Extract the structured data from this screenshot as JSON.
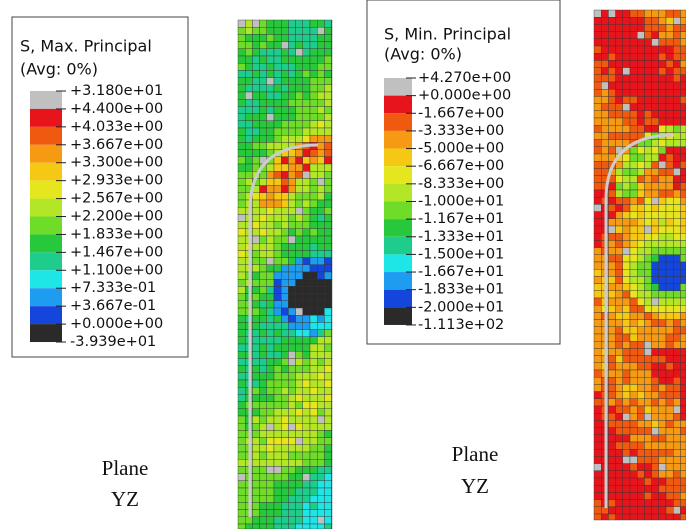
{
  "legends": [
    {
      "title": "S, Max. Principal",
      "subtitle": "(Avg: 0%)",
      "labels": [
        "+3.180e+01",
        "+4.400e+00",
        "+4.033e+00",
        "+3.667e+00",
        "+3.300e+00",
        "+2.933e+00",
        "+2.567e+00",
        "+2.200e+00",
        "+1.833e+00",
        "+1.467e+00",
        "+1.100e+00",
        "+7.333e-01",
        "+3.667e-01",
        "+0.000e+00",
        "-3.939e+01"
      ],
      "colors": [
        "#c0c0c0",
        "#e8141c",
        "#f05a10",
        "#f59a12",
        "#f5c814",
        "#e6e61e",
        "#b4e628",
        "#6edc28",
        "#28c83c",
        "#1ecc8c",
        "#1ee6e6",
        "#1e9cf0",
        "#1446dc",
        "#2a2a2a"
      ]
    },
    {
      "title": "S, Min. Principal",
      "subtitle": "(Avg: 0%)",
      "labels": [
        "+4.270e+00",
        "+0.000e+00",
        "-1.667e+00",
        "-3.333e+00",
        "-5.000e+00",
        "-6.667e+00",
        "-8.333e+00",
        "-1.000e+01",
        "-1.167e+01",
        "-1.333e+01",
        "-1.500e+01",
        "-1.667e+01",
        "-1.833e+01",
        "-2.000e+01",
        "-1.113e+02"
      ],
      "colors": [
        "#c0c0c0",
        "#e8141c",
        "#f05a10",
        "#f59a12",
        "#f5c814",
        "#e6e61e",
        "#b4e628",
        "#6edc28",
        "#28c83c",
        "#1ecc8c",
        "#1ee6e6",
        "#1e9cf0",
        "#1446dc",
        "#2a2a2a"
      ]
    }
  ],
  "captions": [
    {
      "line1": "Plane",
      "line2": "YZ"
    },
    {
      "line1": "Plane",
      "line2": "YZ"
    }
  ]
}
